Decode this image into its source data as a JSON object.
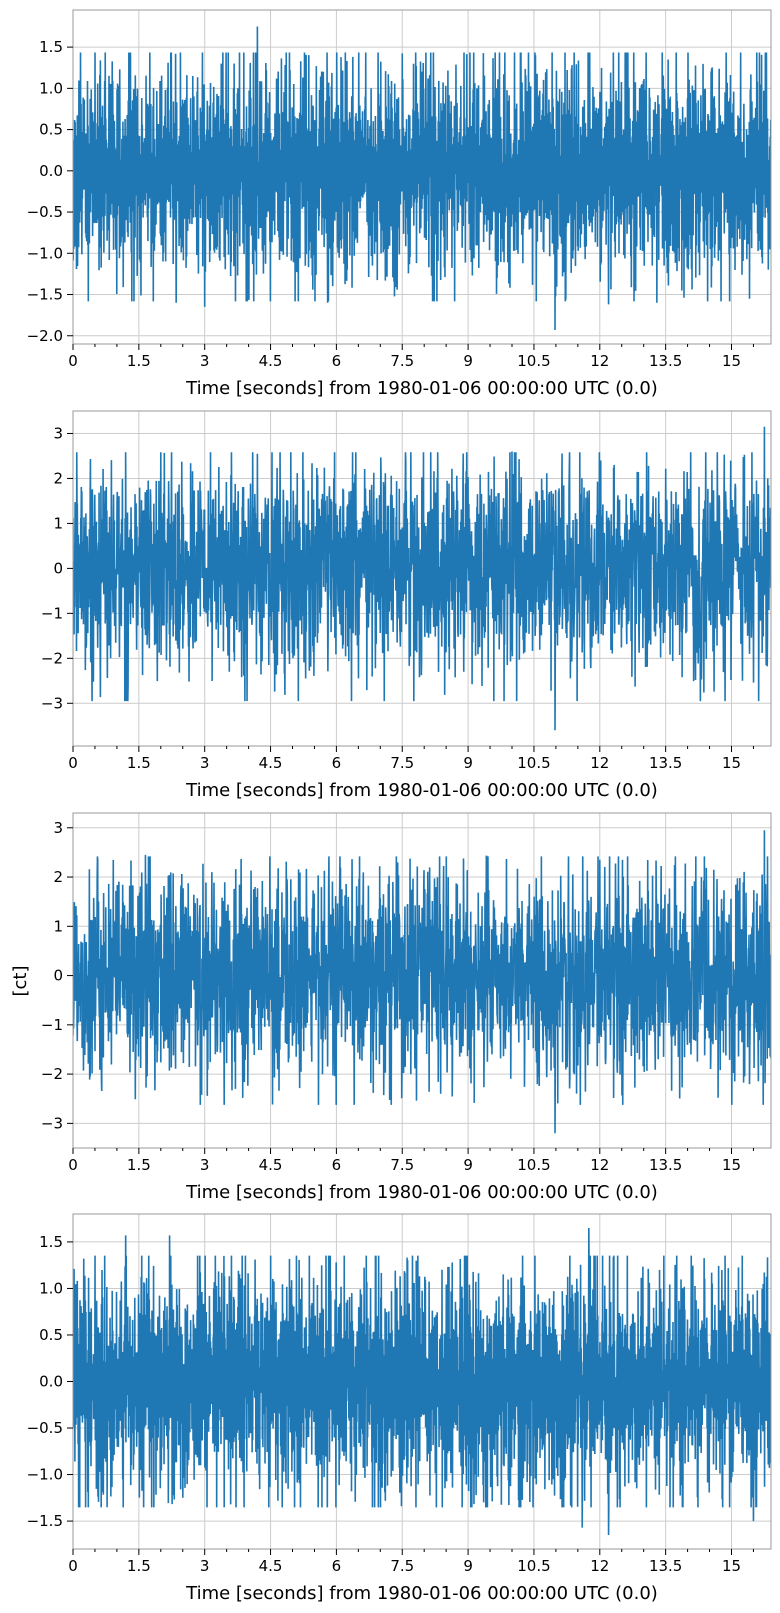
{
  "figure": {
    "shared_ylabel": "[ct]",
    "line_color": "#1f77b4",
    "grid_color": "#cccccc"
  },
  "chart_data": [
    {
      "type": "line",
      "xlabel": "Time [seconds] from 1980-01-06 00:00:00 UTC (0.0)",
      "xlim": [
        0,
        15.9
      ],
      "ylim": [
        -2.1,
        1.95
      ],
      "xticks": [
        0,
        1.5,
        3,
        4.5,
        6,
        7.5,
        9,
        10.5,
        12,
        13.5,
        15
      ],
      "xtick_labels": [
        "0",
        "1.5",
        "3",
        "4.5",
        "6",
        "7.5",
        "9",
        "10.5",
        "12",
        "13.5",
        "15"
      ],
      "yticks": [
        1.5,
        1.0,
        0.5,
        0.0,
        -0.5,
        -1.0,
        -1.5,
        -2.0
      ],
      "ytick_labels": [
        "1.5",
        "1.0",
        "0.5",
        "0.0",
        "−0.5",
        "−1.0",
        "−1.5",
        "−2.0"
      ],
      "grid": true,
      "series": [
        {
          "values_description_note_removed": null,
          "y_max": 1.75,
          "y_min": -1.93,
          "spikes": [
            {
              "x": 4.2,
              "y": 1.75
            },
            {
              "x": 10.98,
              "y": -1.93
            },
            {
              "x": 3.0,
              "y": -1.65
            },
            {
              "x": 2.35,
              "y": -1.6
            },
            {
              "x": 12.2,
              "y": -1.62
            },
            {
              "x": 13.3,
              "y": -1.6
            },
            {
              "x": 5.8,
              "y": -1.6
            }
          ]
        }
      ]
    },
    {
      "type": "line",
      "xlabel": "Time [seconds] from 1980-01-06 00:00:00 UTC (0.0)",
      "xlim": [
        0,
        15.9
      ],
      "ylim": [
        -3.95,
        3.5
      ],
      "xticks": [
        0,
        1.5,
        3,
        4.5,
        6,
        7.5,
        9,
        10.5,
        12,
        13.5,
        15
      ],
      "xtick_labels": [
        "0",
        "1.5",
        "3",
        "4.5",
        "6",
        "7.5",
        "9",
        "10.5",
        "12",
        "13.5",
        "15"
      ],
      "yticks": [
        3,
        2,
        1,
        0,
        -1,
        -2,
        -3
      ],
      "ytick_labels": [
        "3",
        "2",
        "1",
        "0",
        "−1",
        "−2",
        "−3"
      ],
      "grid": true,
      "series": [
        {
          "y_max": 3.15,
          "y_min": -3.6,
          "spikes": [
            {
              "x": 15.75,
              "y": 3.15
            },
            {
              "x": 10.98,
              "y": -3.6
            },
            {
              "x": 4.2,
              "y": 2.55
            },
            {
              "x": 10.0,
              "y": 2.6
            },
            {
              "x": 5.3,
              "y": -2.45
            },
            {
              "x": 15.25,
              "y": -2.5
            }
          ]
        }
      ]
    },
    {
      "type": "line",
      "xlabel": "Time [seconds] from 1980-01-06 00:00:00 UTC (0.0)",
      "xlim": [
        0,
        15.9
      ],
      "ylim": [
        -3.5,
        3.3
      ],
      "xticks": [
        0,
        1.5,
        3,
        4.5,
        6,
        7.5,
        9,
        10.5,
        12,
        13.5,
        15
      ],
      "xtick_labels": [
        "0",
        "1.5",
        "3",
        "4.5",
        "6",
        "7.5",
        "9",
        "10.5",
        "12",
        "13.5",
        "15"
      ],
      "yticks": [
        3,
        2,
        1,
        0,
        -1,
        -2,
        -3
      ],
      "ytick_labels": [
        "3",
        "2",
        "1",
        "0",
        "−1",
        "−2",
        "−3"
      ],
      "grid": true,
      "series": [
        {
          "y_max": 2.95,
          "y_min": -3.2,
          "spikes": [
            {
              "x": 15.75,
              "y": 2.95
            },
            {
              "x": 10.98,
              "y": -3.2
            },
            {
              "x": 1.65,
              "y": 2.45
            },
            {
              "x": 12.0,
              "y": 2.35
            },
            {
              "x": 0.65,
              "y": -2.2
            },
            {
              "x": 3.7,
              "y": -2.3
            }
          ]
        }
      ]
    },
    {
      "type": "line",
      "xlabel": "Time [seconds] from 1980-01-06 00:00:00 UTC (0.0)",
      "xlim": [
        0,
        15.9
      ],
      "ylim": [
        -1.8,
        1.8
      ],
      "xticks": [
        0,
        1.5,
        3,
        4.5,
        6,
        7.5,
        9,
        10.5,
        12,
        13.5,
        15
      ],
      "xtick_labels": [
        "0",
        "1.5",
        "3",
        "4.5",
        "6",
        "7.5",
        "9",
        "10.5",
        "12",
        "13.5",
        "15"
      ],
      "yticks": [
        1.5,
        1.0,
        0.5,
        0.0,
        -0.5,
        -1.0,
        -1.5
      ],
      "ytick_labels": [
        "1.5",
        "1.0",
        "0.5",
        "0.0",
        "−0.5",
        "−1.0",
        "−1.5"
      ],
      "grid": true,
      "series": [
        {
          "y_max": 1.65,
          "y_min": -1.65,
          "spikes": [
            {
              "x": 11.75,
              "y": 1.65
            },
            {
              "x": 12.2,
              "y": -1.65
            },
            {
              "x": 11.6,
              "y": -1.57
            },
            {
              "x": 2.2,
              "y": 1.57
            },
            {
              "x": 1.2,
              "y": 1.57
            },
            {
              "x": 15.5,
              "y": -1.5
            }
          ]
        }
      ]
    }
  ]
}
